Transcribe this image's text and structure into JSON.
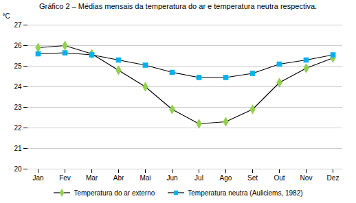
{
  "chart_data": {
    "type": "line",
    "title": "Gráfico 2 – Médias mensais da temperatura do ar e temperatura neutra respectiva.",
    "categories": [
      "Jan",
      "Fev",
      "Mar",
      "Abr",
      "Mai",
      "Jun",
      "Jul",
      "Ago",
      "Set",
      "Out",
      "Nov",
      "Dez"
    ],
    "series": [
      {
        "name": "Temperatura do ar externo",
        "color": "#92d050",
        "marker": "diamond",
        "values": [
          25.9,
          26.0,
          25.6,
          24.8,
          24.0,
          22.9,
          22.2,
          22.3,
          22.9,
          24.2,
          24.9,
          25.4
        ]
      },
      {
        "name": "Temperatura neutra (Auliciems, 1982)",
        "color": "#00b0f0",
        "marker": "square",
        "values": [
          25.6,
          25.65,
          25.55,
          25.3,
          25.05,
          24.7,
          24.45,
          24.45,
          24.65,
          25.1,
          25.3,
          25.55
        ]
      }
    ],
    "ylabel": "°C",
    "ylim": [
      20,
      27
    ],
    "yticks": [
      20,
      21,
      22,
      23,
      24,
      25,
      26,
      27
    ],
    "grid": true,
    "legend": "bottom"
  }
}
